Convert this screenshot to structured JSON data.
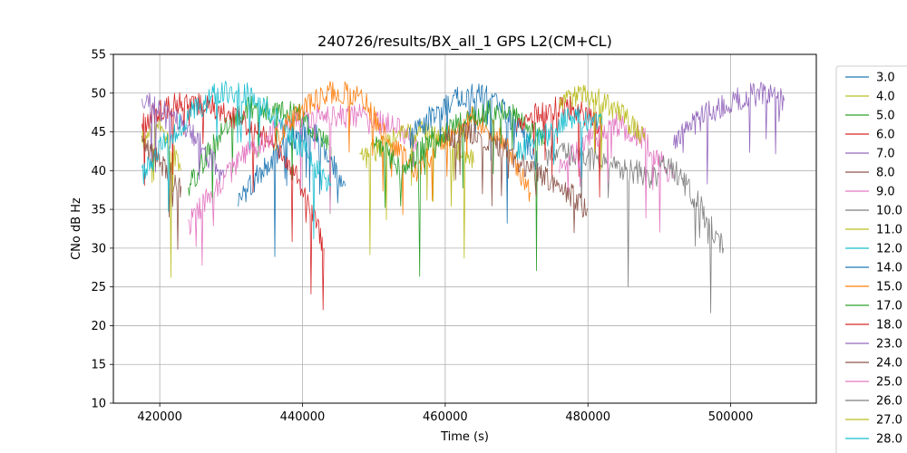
{
  "chart_data": {
    "type": "line",
    "title": "240726/results/BX_all_1 GPS L2(CM+CL)",
    "xlabel": "Time (s)",
    "ylabel": "CNo dB Hz",
    "xlim": [
      413500,
      512000
    ],
    "ylim": [
      10,
      55
    ],
    "xticks": [
      420000,
      440000,
      460000,
      480000,
      500000
    ],
    "xtick_labels": [
      "420000",
      "440000",
      "460000",
      "480000",
      "500000"
    ],
    "yticks": [
      10,
      15,
      20,
      25,
      30,
      35,
      40,
      45,
      50,
      55
    ],
    "ytick_labels": [
      "10",
      "15",
      "20",
      "25",
      "30",
      "35",
      "40",
      "45",
      "50",
      "55"
    ],
    "grid": true,
    "legend_position": "outside-right",
    "series": [
      {
        "name": "3.0",
        "color": "#1f77b4",
        "x": [
          431000,
          436000,
          441000,
          446000
        ],
        "y": [
          36,
          42,
          46,
          38
        ]
      },
      {
        "name": "4.0",
        "color": "#bcbd22",
        "x": [
          417500,
          420000,
          423000
        ],
        "y": [
          44,
          46,
          40
        ]
      },
      {
        "name": "5.0",
        "color": "#2ca02c",
        "x": [
          424000,
          428000,
          432000,
          436000,
          440000,
          444000
        ],
        "y": [
          38,
          44,
          48,
          48,
          47,
          43
        ]
      },
      {
        "name": "6.0",
        "color": "#d62728",
        "x": [
          417500,
          420000,
          424000,
          428000,
          432000,
          436000,
          440000,
          443000
        ],
        "y": [
          46,
          48,
          49,
          48,
          46,
          44,
          38,
          30
        ]
      },
      {
        "name": "7.0",
        "color": "#9467bd",
        "x": [
          417500,
          420000,
          423000,
          426000,
          429000
        ],
        "y": [
          49,
          48,
          46,
          43,
          39
        ]
      },
      {
        "name": "8.0",
        "color": "#8c564b",
        "x": [
          417500,
          420000,
          423000
        ],
        "y": [
          44,
          41,
          38
        ]
      },
      {
        "name": "9.0",
        "color": "#e377c2",
        "x": [
          424000,
          428000,
          432000,
          436000,
          440000,
          444000,
          448000,
          452000,
          456000
        ],
        "y": [
          33,
          38,
          42,
          45,
          47,
          47,
          47,
          46,
          44
        ]
      },
      {
        "name": "10.0",
        "color": "#7f7f7f",
        "x": [
          474000,
          478000,
          482000,
          486000,
          490000
        ],
        "y": [
          42,
          42,
          41,
          40,
          39
        ]
      },
      {
        "name": "11.0",
        "color": "#bcbd22",
        "x": [
          448000,
          452000,
          456000,
          460000,
          464000
        ],
        "y": [
          41,
          44,
          45,
          44,
          41
        ]
      },
      {
        "name": "12.0",
        "color": "#17becf",
        "x": [
          417500,
          420000,
          424000,
          428000,
          432000,
          436000,
          440000,
          444000
        ],
        "y": [
          39,
          43,
          47,
          50,
          50,
          47,
          43,
          38
        ]
      },
      {
        "name": "14.0",
        "color": "#1f77b4",
        "x": [
          455000,
          458000,
          461000,
          464000,
          467000,
          470000,
          473000
        ],
        "y": [
          44,
          47,
          49,
          50,
          49,
          46,
          41
        ]
      },
      {
        "name": "15.0",
        "color": "#ff7f0e",
        "x": [
          436000,
          440000,
          444000,
          448000,
          452000,
          456000,
          460000,
          464000,
          468000,
          472000
        ],
        "y": [
          44,
          48,
          50,
          50,
          44,
          40,
          44,
          47,
          44,
          37
        ]
      },
      {
        "name": "17.0",
        "color": "#2ca02c",
        "x": [
          450000,
          454000,
          458000,
          462000,
          466000,
          470000,
          474000
        ],
        "y": [
          44,
          40,
          44,
          46,
          48,
          47,
          44
        ]
      },
      {
        "name": "18.0",
        "color": "#d62728",
        "x": [
          470000,
          474000,
          478000,
          482000
        ],
        "y": [
          46,
          48,
          48,
          46
        ]
      },
      {
        "name": "23.0",
        "color": "#9467bd",
        "x": [
          492000,
          496000,
          500000,
          504000,
          507500
        ],
        "y": [
          44,
          47,
          49,
          50,
          49
        ]
      },
      {
        "name": "24.0",
        "color": "#8c564b",
        "x": [
          460000,
          464000,
          468000,
          472000,
          476000,
          480000
        ],
        "y": [
          44,
          45,
          43,
          40,
          38,
          35
        ]
      },
      {
        "name": "25.0",
        "color": "#e377c2",
        "x": [
          476000,
          480000,
          484000,
          488000,
          492000
        ],
        "y": [
          40,
          44,
          46,
          44,
          39
        ]
      },
      {
        "name": "26.0",
        "color": "#7f7f7f",
        "x": [
          490000,
          493000,
          496000,
          499000
        ],
        "y": [
          42,
          39,
          35,
          30
        ]
      },
      {
        "name": "27.0",
        "color": "#bcbd22",
        "x": [
          476000,
          479000,
          482000,
          485000,
          488000
        ],
        "y": [
          49,
          50,
          49,
          47,
          44
        ]
      },
      {
        "name": "28.0",
        "color": "#17becf",
        "x": [
          470000,
          474000,
          478000,
          482000
        ],
        "y": [
          42,
          45,
          47,
          46
        ]
      }
    ]
  }
}
